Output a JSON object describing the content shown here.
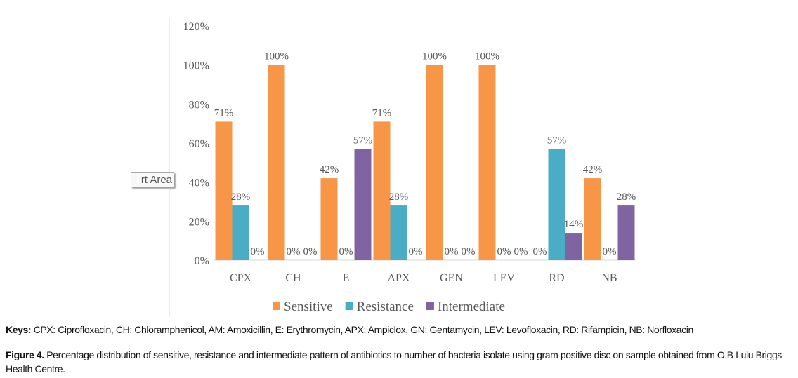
{
  "chart_data": {
    "type": "bar",
    "categories": [
      "CPX",
      "CH",
      "E",
      "APX",
      "GEN",
      "LEV",
      "RD",
      "NB"
    ],
    "series": [
      {
        "name": "Sensitive",
        "color": "#F79646",
        "values": [
          71,
          100,
          42,
          71,
          100,
          100,
          0,
          42
        ]
      },
      {
        "name": "Resistance",
        "color": "#4BACC6",
        "values": [
          28,
          0,
          0,
          28,
          0,
          0,
          57,
          0
        ]
      },
      {
        "name": "Intermediate",
        "color": "#8064A2",
        "values": [
          0,
          0,
          57,
          0,
          0,
          0,
          14,
          28
        ]
      }
    ],
    "yticks": [
      "0%",
      "20%",
      "40%",
      "60%",
      "80%",
      "100%",
      "120%"
    ],
    "ylim": [
      0,
      120
    ],
    "legend": "bottom",
    "tooltip": "rt Area"
  },
  "keys": {
    "label": "Keys:",
    "text": " CPX: Ciprofloxacin, CH: Chloramphenicol, AM: Amoxicillin, E: Erythromycin, APX: Ampiclox, GN: Gentamycin, LEV: Levofloxacin, RD: Rifampicin, NB: Norfloxacin"
  },
  "caption": {
    "label": "Figure 4.",
    "text": " Percentage distribution of sensitive, resistance and intermediate pattern of antibiotics to number of bacteria isolate using gram positive disc on sample obtained from O.B Lulu Briggs Health Centre."
  }
}
